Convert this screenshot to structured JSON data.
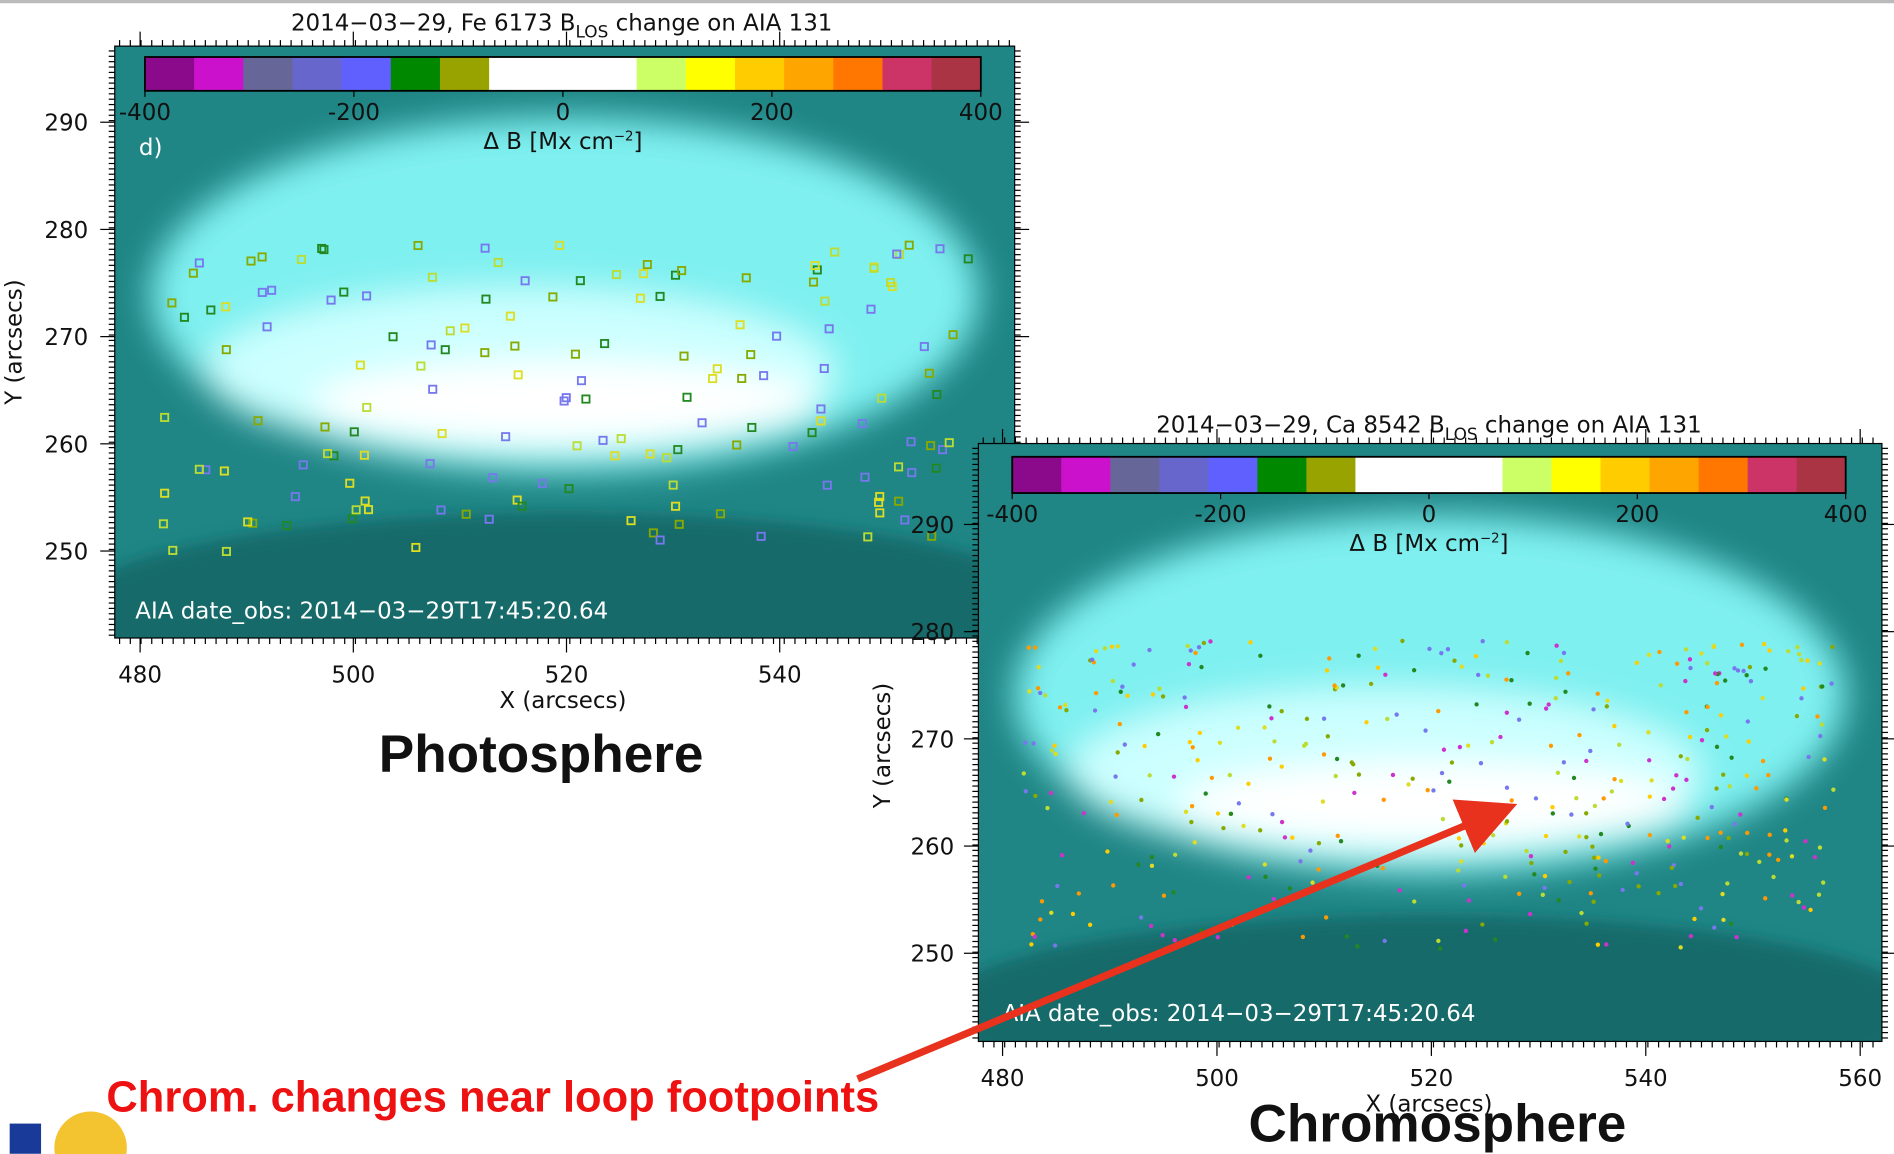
{
  "slide": {
    "caption": "Chrom. changes near loop footpoints"
  },
  "panels": [
    {
      "title": {
        "before": "2014−03−29, Fe 6173 B",
        "sub": "LOS",
        "after": " change on AIA 131"
      },
      "colorbar_label": {
        "before": "Δ B [Mx cm",
        "sup": "−2",
        "after": "]"
      },
      "colorbar_ticks": [
        -400,
        -200,
        0,
        200,
        400
      ],
      "panel_tag": "d)",
      "xticks": [
        480,
        500,
        520,
        540
      ],
      "yticks": [
        290,
        280,
        270,
        260,
        250
      ],
      "xlabel": "X (arcsecs)",
      "ylabel": "Y (arcsecs)",
      "date_text": "AIA date_obs: 2014−03−29T17:45:20.64",
      "name": "Photosphere"
    },
    {
      "title": {
        "before": "2014−03−29, Ca 8542 B",
        "sub": "LOS",
        "after": " change on AIA 131"
      },
      "colorbar_label": {
        "before": "Δ B [Mx cm",
        "sup": "−2",
        "after": "]"
      },
      "colorbar_ticks": [
        -400,
        -200,
        0,
        200,
        400
      ],
      "xticks": [
        480,
        500,
        520,
        540,
        560
      ],
      "yticks": [
        290,
        280,
        270,
        260,
        250
      ],
      "xlabel": "X (arcsecs)",
      "ylabel": "Y (arcsecs)",
      "date_text": "AIA date_obs: 2014−03−29T17:45:20.64",
      "name": "Chromosphere"
    }
  ]
}
